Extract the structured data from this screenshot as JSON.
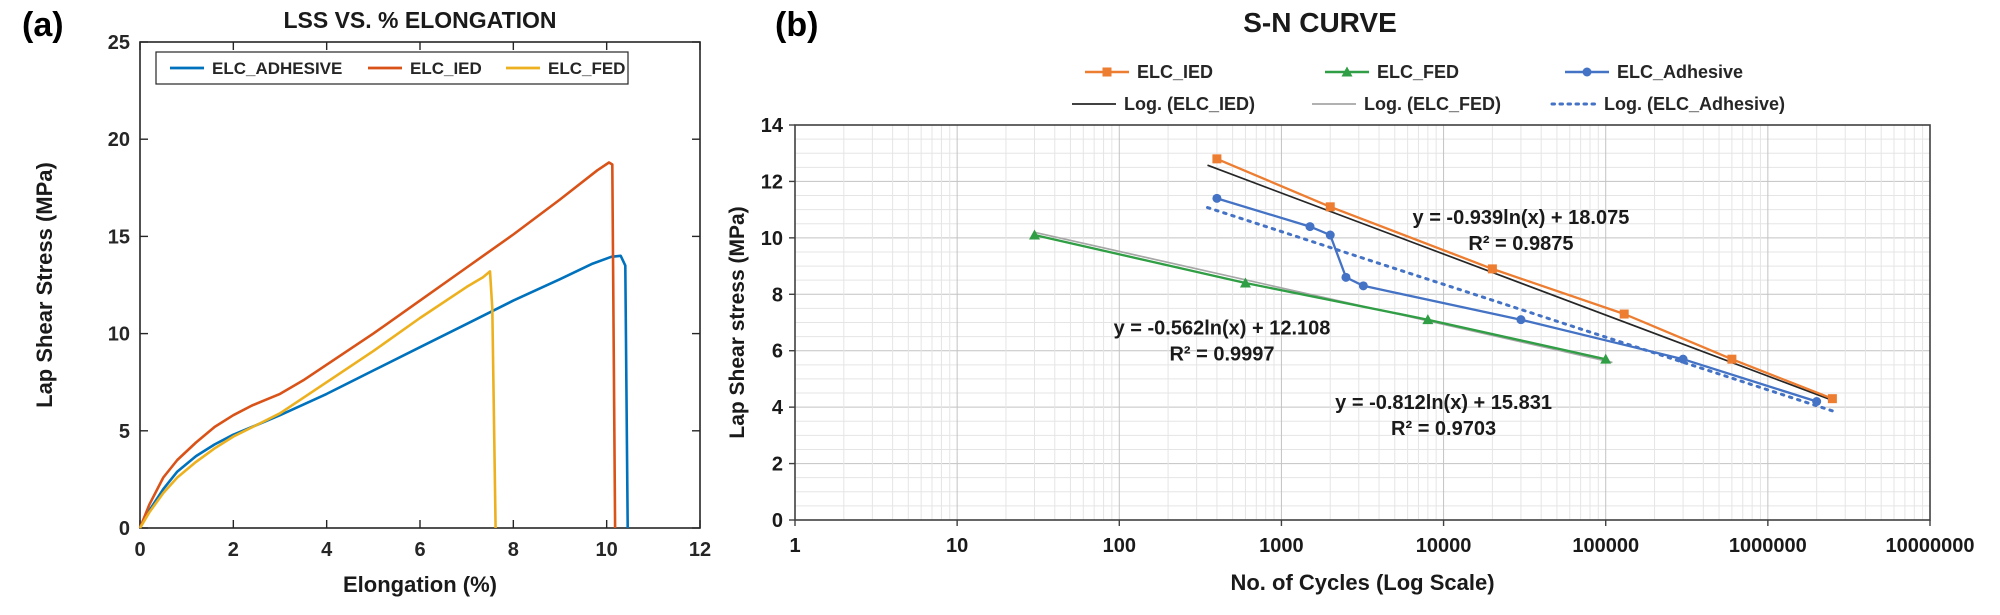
{
  "panels": {
    "a_label": "(a)",
    "b_label": "(b)"
  },
  "chart_data": [
    {
      "id": "lss_vs_elongation",
      "type": "line",
      "title": "LSS VS. % ELONGATION",
      "xlabel": "Elongation (%)",
      "ylabel": "Lap Shear Stress (MPa)",
      "xlim": [
        0,
        12
      ],
      "ylim": [
        0,
        25
      ],
      "xticks": [
        0,
        2,
        4,
        6,
        8,
        10,
        12
      ],
      "yticks": [
        0,
        5,
        10,
        15,
        20,
        25
      ],
      "grid": false,
      "legend_position": "top-inside",
      "series": [
        {
          "name": "ELC_ADHESIVE",
          "color": "#0072BD",
          "points": [
            [
              0,
              0
            ],
            [
              0.2,
              0.9
            ],
            [
              0.5,
              2.0
            ],
            [
              0.8,
              2.9
            ],
            [
              1.2,
              3.7
            ],
            [
              1.6,
              4.3
            ],
            [
              2,
              4.8
            ],
            [
              2.5,
              5.3
            ],
            [
              3,
              5.8
            ],
            [
              4,
              6.9
            ],
            [
              5,
              8.1
            ],
            [
              6,
              9.3
            ],
            [
              7,
              10.5
            ],
            [
              8,
              11.7
            ],
            [
              9,
              12.8
            ],
            [
              9.7,
              13.6
            ],
            [
              10.1,
              13.95
            ],
            [
              10.3,
              14.0
            ],
            [
              10.4,
              13.5
            ],
            [
              10.45,
              0
            ]
          ]
        },
        {
          "name": "ELC_IED",
          "color": "#D95319",
          "points": [
            [
              0,
              0
            ],
            [
              0.2,
              1.2
            ],
            [
              0.5,
              2.6
            ],
            [
              0.8,
              3.5
            ],
            [
              1.2,
              4.4
            ],
            [
              1.6,
              5.2
            ],
            [
              2,
              5.8
            ],
            [
              2.4,
              6.3
            ],
            [
              2.7,
              6.6
            ],
            [
              3,
              6.9
            ],
            [
              3.5,
              7.6
            ],
            [
              4,
              8.4
            ],
            [
              5,
              10.0
            ],
            [
              6,
              11.7
            ],
            [
              7,
              13.4
            ],
            [
              8,
              15.1
            ],
            [
              9,
              16.9
            ],
            [
              9.8,
              18.4
            ],
            [
              10.05,
              18.8
            ],
            [
              10.12,
              18.7
            ],
            [
              10.18,
              0
            ]
          ]
        },
        {
          "name": "ELC_FED",
          "color": "#EDB120",
          "points": [
            [
              0,
              0
            ],
            [
              0.2,
              0.8
            ],
            [
              0.5,
              1.8
            ],
            [
              0.8,
              2.6
            ],
            [
              1.2,
              3.4
            ],
            [
              1.6,
              4.1
            ],
            [
              2,
              4.7
            ],
            [
              2.5,
              5.3
            ],
            [
              3,
              5.9
            ],
            [
              3.5,
              6.7
            ],
            [
              4,
              7.5
            ],
            [
              5,
              9.1
            ],
            [
              6,
              10.8
            ],
            [
              7,
              12.4
            ],
            [
              7.35,
              12.9
            ],
            [
              7.5,
              13.2
            ],
            [
              7.55,
              11.3
            ],
            [
              7.62,
              0
            ]
          ]
        }
      ]
    },
    {
      "id": "sn_curve",
      "type": "line",
      "title": "S-N CURVE",
      "xlabel": "No. of Cycles (Log Scale)",
      "ylabel": "Lap Shear stress (MPa)",
      "x_scale": "log",
      "xlim": [
        1,
        10000000
      ],
      "ylim": [
        0,
        14
      ],
      "xticks": [
        1,
        10,
        100,
        1000,
        10000,
        100000,
        1000000,
        10000000
      ],
      "yticks": [
        0,
        2,
        4,
        6,
        8,
        10,
        12,
        14
      ],
      "grid": true,
      "legend_position": "top-outside",
      "series": [
        {
          "name": "ELC_IED",
          "color": "#ED7D31",
          "marker": "square",
          "points": [
            [
              400,
              12.8
            ],
            [
              2000,
              11.1
            ],
            [
              20000,
              8.9
            ],
            [
              130000,
              7.3
            ],
            [
              600000,
              5.7
            ],
            [
              2500000,
              4.3
            ]
          ]
        },
        {
          "name": "ELC_FED",
          "color": "#2F9E44",
          "marker": "triangle",
          "points": [
            [
              30,
              10.1
            ],
            [
              600,
              8.4
            ],
            [
              8000,
              7.1
            ],
            [
              100000,
              5.7
            ]
          ]
        },
        {
          "name": "ELC_Adhesive",
          "color": "#4472C4",
          "marker": "circle",
          "points": [
            [
              400,
              11.4
            ],
            [
              1500,
              10.4
            ],
            [
              2000,
              10.1
            ],
            [
              2500,
              8.6
            ],
            [
              3200,
              8.3
            ],
            [
              30000,
              7.1
            ],
            [
              300000,
              5.7
            ],
            [
              2000000,
              4.2
            ]
          ]
        }
      ],
      "trendlines": [
        {
          "name": "Log. (ELC_IED)",
          "color": "#262626",
          "style": "solid",
          "slope": -0.939,
          "intercept": 18.075,
          "x_range": [
            350,
            2600000
          ]
        },
        {
          "name": "Log. (ELC_FED)",
          "color": "#a6a6a6",
          "style": "solid",
          "slope": -0.562,
          "intercept": 12.108,
          "x_range": [
            30,
            110000
          ]
        },
        {
          "name": "Log. (ELC_Adhesive)",
          "color": "#4472C4",
          "style": "dotted",
          "slope": -0.812,
          "intercept": 15.831,
          "x_range": [
            350,
            2600000
          ]
        }
      ],
      "annotations": [
        {
          "lines": [
            "y = -0.939ln(x) + 18.075",
            "R² = 0.9875"
          ],
          "x": 30000,
          "y": 10.2
        },
        {
          "lines": [
            "y = -0.562ln(x) + 12.108",
            "R² = 0.9997"
          ],
          "x": 430,
          "y": 6.3
        },
        {
          "lines": [
            "y = -0.812ln(x) + 15.831",
            "R² = 0.9703"
          ],
          "x": 10000,
          "y": 3.65
        }
      ]
    }
  ]
}
